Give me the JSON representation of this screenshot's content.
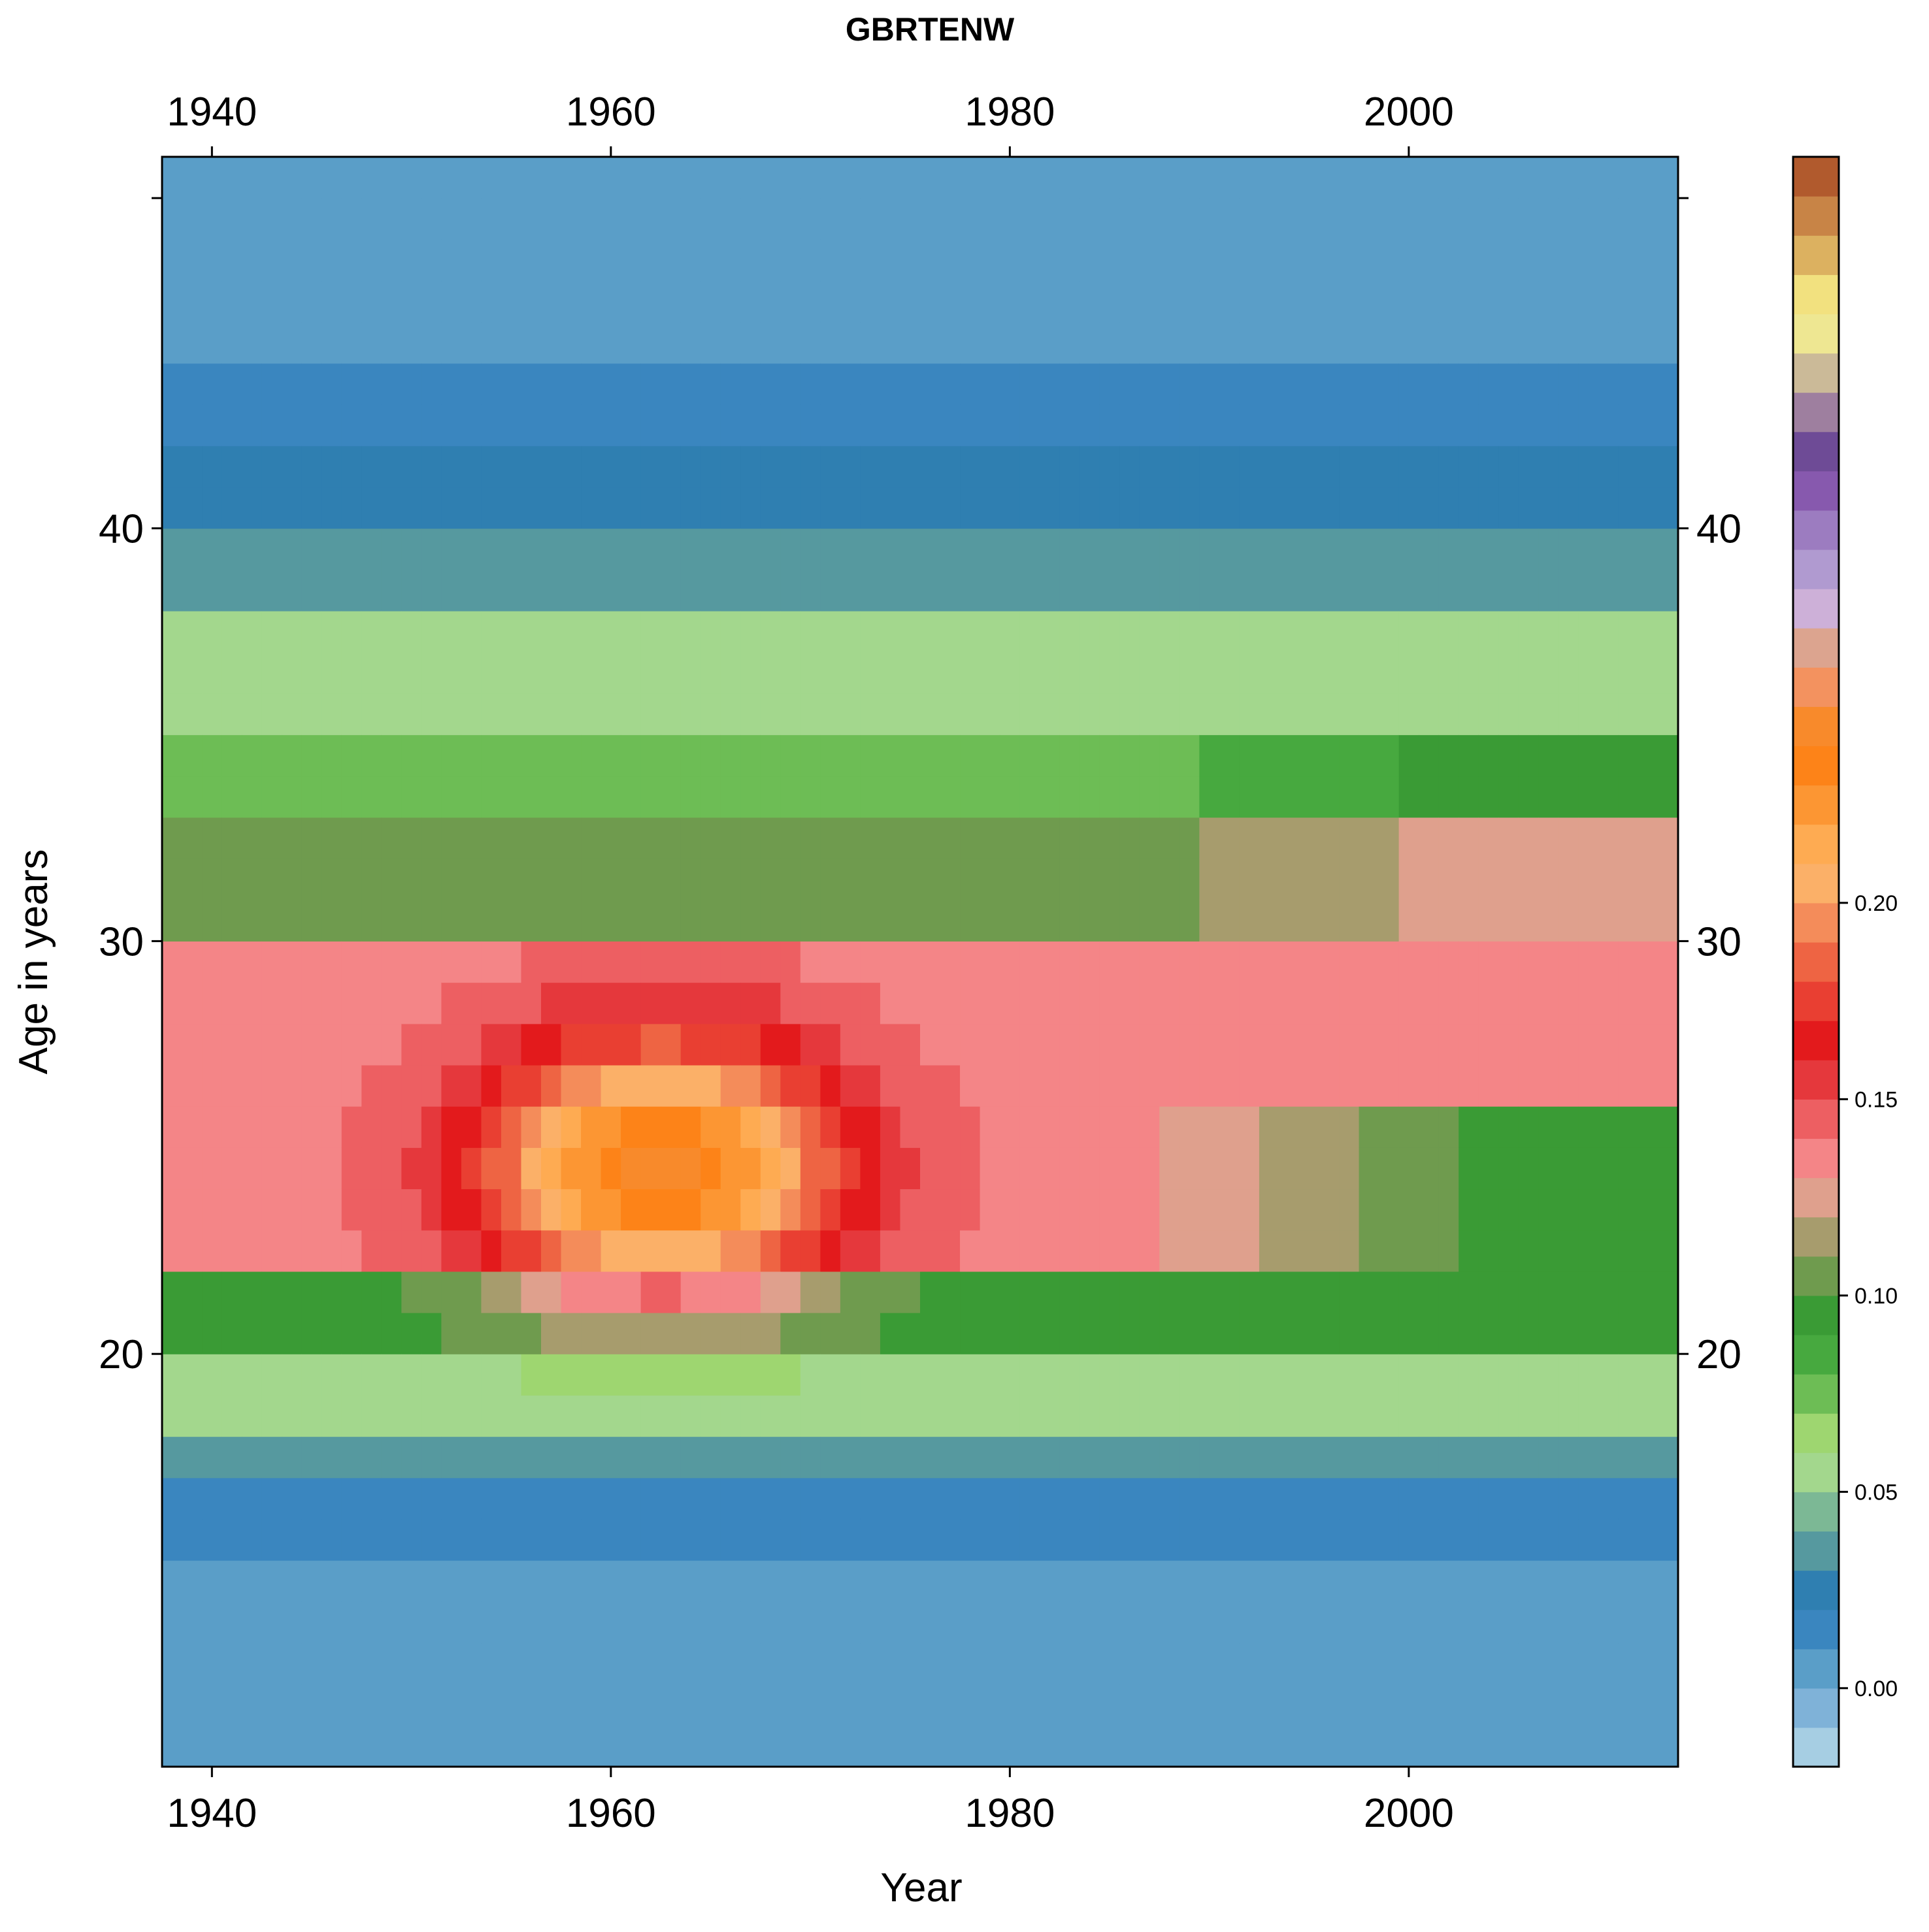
{
  "chart_data": {
    "type": "heatmap",
    "title": "GBRTENW",
    "xlabel": "Year",
    "ylabel": "Age in years",
    "x_ticks": [
      1940,
      1960,
      1980,
      2000
    ],
    "y_ticks": [
      20,
      30,
      40
    ],
    "xlim": [
      1937.5,
      2013.5
    ],
    "ylim": [
      10,
      49
    ],
    "legend_ticks": [
      "0.00",
      "0.05",
      "0.10",
      "0.15",
      "0.20"
    ],
    "legend_tick_values": [
      0.0,
      0.05,
      0.1,
      0.15,
      0.2
    ],
    "legend_placement": "right",
    "colorscale": {
      "min": -0.02,
      "step": 0.01,
      "colors": [
        "#a6cee3",
        "#7fb2d8",
        "#5a9ec8",
        "#3a86bf",
        "#2f7fb1",
        "#56999f",
        "#7cb895",
        "#a3d78d",
        "#9ed670",
        "#6dbd55",
        "#47a93f",
        "#3a9b35",
        "#6f9b4e",
        "#a79c6d",
        "#dfa08d",
        "#f48587",
        "#ed5f62",
        "#e5383c",
        "#e31a1c",
        "#e93f32",
        "#ee6443",
        "#f48c5a",
        "#fbb068",
        "#feab52",
        "#fc9633",
        "#fd8318",
        "#f88a2b",
        "#f3925f",
        "#dca48f",
        "#cdb0d8",
        "#b09ad0",
        "#9c7cc0",
        "#8759ae",
        "#6e4b96",
        "#9e7f9f",
        "#cbba98",
        "#eee792",
        "#f2e17f",
        "#dcb160",
        "#c88446",
        "#b15a2d"
      ]
    },
    "z_bands": [
      {
        "age_from": 13,
        "age_to": 15,
        "value": 0.0
      },
      {
        "age_from": 15,
        "age_to": 17,
        "value": 0.01
      },
      {
        "age_from": 17,
        "age_to": 18,
        "value": 0.03
      },
      {
        "age_from": 18,
        "age_to": 20,
        "value": 0.05
      },
      {
        "age_from": 20,
        "age_to": 22,
        "value": 0.09
      },
      {
        "age_from": 22,
        "age_to": 26,
        "value": 0.13
      },
      {
        "age_from": 26,
        "age_to": 30,
        "value": 0.13
      },
      {
        "age_from": 30,
        "age_to": 33,
        "value": 0.1
      },
      {
        "age_from": 33,
        "age_to": 35,
        "value": 0.07
      },
      {
        "age_from": 35,
        "age_to": 38,
        "value": 0.05
      },
      {
        "age_from": 38,
        "age_to": 40,
        "value": 0.03
      },
      {
        "age_from": 40,
        "age_to": 42,
        "value": 0.02
      },
      {
        "age_from": 42,
        "age_to": 44,
        "value": 0.01
      },
      {
        "age_from": 44,
        "age_to": 49,
        "value": 0.0
      }
    ]
  }
}
